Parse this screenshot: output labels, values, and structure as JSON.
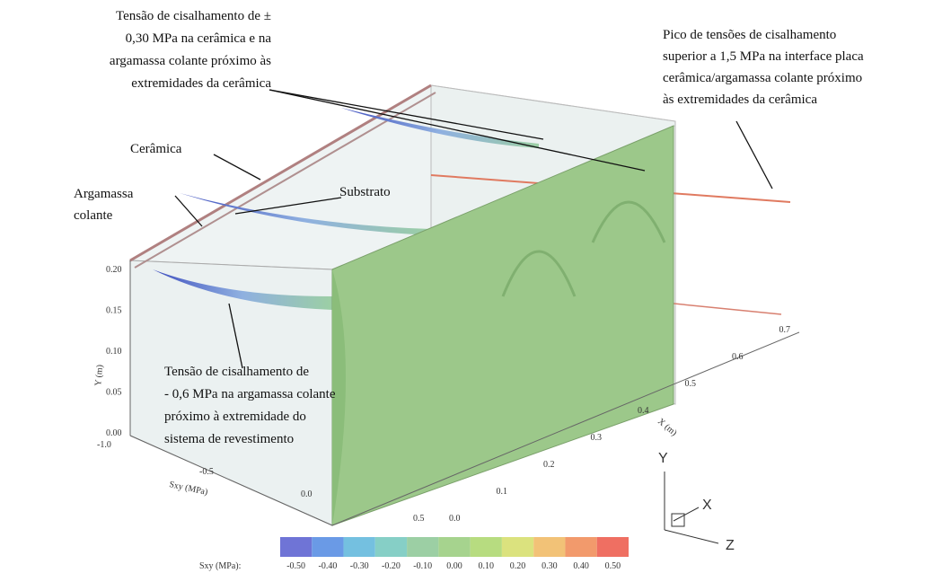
{
  "annotations": {
    "top_left": [
      "Tensão de cisalhamento de ±",
      "0,30 MPa na cerâmica e na",
      "argamassa colante próximo às",
      "extremidades da cerâmica"
    ],
    "top_right": [
      "Pico de tensões de cisalhamento",
      "superior a 1,5 MPa na interface placa",
      "cerâmica/argamassa colante próximo",
      "às extremidades da cerâmica"
    ],
    "ceramica": "Cerâmica",
    "argamassa": [
      "Argamassa",
      "colante"
    ],
    "substrato": "Substrato",
    "bottom": [
      "Tensão de cisalhamento de",
      "- 0,6 MPa na argamassa colante",
      "próximo à extremidade do",
      "sistema de revestimento"
    ]
  },
  "axes": {
    "y": {
      "label": "Y (m)",
      "ticks": [
        "0.20",
        "0.15",
        "0.10",
        "0.05",
        "0.00"
      ]
    },
    "sxy": {
      "label": "Sxy (MPa)",
      "ticks": [
        "-1.0",
        "-0.5",
        "0.0",
        "0.5"
      ]
    },
    "x": {
      "label": "X (m)",
      "ticks": [
        "0.0",
        "0.1",
        "0.2",
        "0.3",
        "0.4",
        "0.5",
        "0.6",
        "0.7"
      ]
    }
  },
  "triad": {
    "y": "Y",
    "x": "X",
    "z": "Z"
  },
  "colorbar": {
    "label": "Sxy (MPa):",
    "ticks": [
      "-0.50",
      "-0.40",
      "-0.30",
      "-0.20",
      "-0.10",
      "0.00",
      "0.10",
      "0.20",
      "0.30",
      "0.40",
      "0.50"
    ],
    "colors": [
      "#6f74d6",
      "#6a9ae6",
      "#74c0e0",
      "#86cfc6",
      "#9ccfa4",
      "#a6d38e",
      "#b7dc80",
      "#dbe27e",
      "#f2c277",
      "#f29a6c",
      "#ef6f62"
    ]
  }
}
